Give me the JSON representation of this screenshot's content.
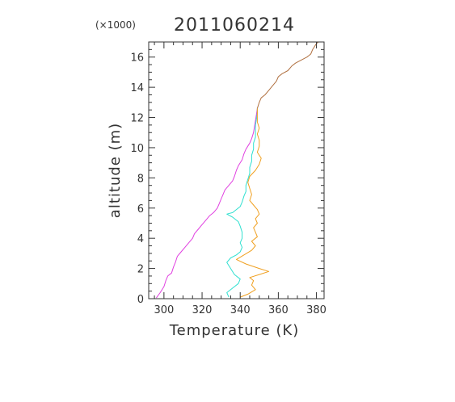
{
  "chart_data": {
    "type": "line",
    "title": "2011060214",
    "y_multiplier_label": "(×1000)",
    "xlabel": "Temperature (K)",
    "ylabel": "altitude (m)",
    "xlim": [
      292,
      384
    ],
    "ylim": [
      0,
      17
    ],
    "xticks": [
      300,
      320,
      340,
      360,
      380
    ],
    "yticks": [
      0,
      2,
      4,
      6,
      8,
      10,
      12,
      14,
      16
    ],
    "grid": false,
    "colors": {
      "magenta": "#e040e0",
      "cyan": "#30e0d0",
      "orange": "#f0a020",
      "brown": "#b07040",
      "axis": "#333333"
    },
    "series": [
      {
        "color": "#e040e0",
        "points": [
          [
            296,
            0.05
          ],
          [
            298,
            0.4
          ],
          [
            300,
            0.8
          ],
          [
            301,
            1.2
          ],
          [
            302,
            1.5
          ],
          [
            304,
            1.7
          ],
          [
            305,
            2.1
          ],
          [
            306,
            2.4
          ],
          [
            307,
            2.8
          ],
          [
            309,
            3.1
          ],
          [
            311,
            3.4
          ],
          [
            313,
            3.7
          ],
          [
            315,
            4.0
          ],
          [
            316,
            4.3
          ],
          [
            318,
            4.6
          ],
          [
            320,
            4.9
          ],
          [
            322,
            5.2
          ],
          [
            324,
            5.5
          ],
          [
            326,
            5.7
          ],
          [
            328,
            6.0
          ],
          [
            329,
            6.3
          ],
          [
            330,
            6.6
          ],
          [
            331,
            6.9
          ],
          [
            332,
            7.2
          ],
          [
            334,
            7.5
          ],
          [
            336,
            7.8
          ],
          [
            337,
            8.1
          ],
          [
            338,
            8.5
          ],
          [
            339,
            8.8
          ],
          [
            341,
            9.2
          ],
          [
            342,
            9.6
          ],
          [
            343,
            9.9
          ],
          [
            345,
            10.3
          ],
          [
            346,
            10.6
          ],
          [
            347,
            11.0
          ],
          [
            347.5,
            11.4
          ],
          [
            348,
            11.8
          ],
          [
            348.5,
            12.2
          ],
          [
            349,
            12.6
          ]
        ]
      },
      {
        "color": "#30e0d0",
        "points": [
          [
            334,
            0.1
          ],
          [
            333,
            0.4
          ],
          [
            336,
            0.7
          ],
          [
            339,
            1.0
          ],
          [
            340,
            1.3
          ],
          [
            337,
            1.6
          ],
          [
            335,
            2.0
          ],
          [
            333,
            2.4
          ],
          [
            335,
            2.7
          ],
          [
            338,
            2.9
          ],
          [
            340,
            3.1
          ],
          [
            341,
            3.4
          ],
          [
            340,
            3.7
          ],
          [
            341,
            4.0
          ],
          [
            341,
            4.4
          ],
          [
            340,
            4.8
          ],
          [
            339,
            5.1
          ],
          [
            336,
            5.4
          ],
          [
            333,
            5.6
          ],
          [
            336,
            5.7
          ],
          [
            338,
            5.9
          ],
          [
            340,
            6.1
          ],
          [
            341,
            6.4
          ],
          [
            342,
            6.8
          ],
          [
            343,
            7.1
          ],
          [
            343,
            7.5
          ],
          [
            344,
            7.9
          ],
          [
            345,
            8.3
          ],
          [
            345,
            8.7
          ],
          [
            346,
            9.1
          ],
          [
            346,
            9.5
          ],
          [
            347,
            9.9
          ],
          [
            347,
            10.3
          ],
          [
            348,
            10.7
          ],
          [
            348,
            11.1
          ],
          [
            348,
            11.5
          ],
          [
            348.5,
            11.9
          ],
          [
            349,
            12.3
          ],
          [
            349,
            12.6
          ]
        ]
      },
      {
        "color": "#f0a020",
        "points": [
          [
            340,
            0.1
          ],
          [
            344,
            0.3
          ],
          [
            348,
            0.6
          ],
          [
            346,
            0.9
          ],
          [
            347,
            1.2
          ],
          [
            345,
            1.4
          ],
          [
            350,
            1.6
          ],
          [
            355,
            1.8
          ],
          [
            350,
            2.0
          ],
          [
            343,
            2.3
          ],
          [
            338,
            2.6
          ],
          [
            342,
            2.9
          ],
          [
            346,
            3.2
          ],
          [
            348,
            3.5
          ],
          [
            346,
            3.8
          ],
          [
            349,
            4.1
          ],
          [
            348,
            4.4
          ],
          [
            347,
            4.7
          ],
          [
            349,
            5.0
          ],
          [
            348,
            5.3
          ],
          [
            350,
            5.6
          ],
          [
            349,
            5.9
          ],
          [
            347,
            6.2
          ],
          [
            345,
            6.5
          ],
          [
            346,
            6.9
          ],
          [
            345,
            7.3
          ],
          [
            344,
            7.7
          ],
          [
            345,
            8.1
          ],
          [
            348,
            8.5
          ],
          [
            350,
            8.9
          ],
          [
            351,
            9.3
          ],
          [
            349,
            9.7
          ],
          [
            350,
            10.1
          ],
          [
            350,
            10.5
          ],
          [
            349,
            10.9
          ],
          [
            350,
            11.3
          ],
          [
            349,
            11.7
          ],
          [
            349,
            12.1
          ],
          [
            349,
            12.6
          ]
        ]
      },
      {
        "color": "#b07040",
        "points": [
          [
            349,
            12.6
          ],
          [
            350,
            13.0
          ],
          [
            351,
            13.3
          ],
          [
            353,
            13.5
          ],
          [
            355,
            13.8
          ],
          [
            357,
            14.1
          ],
          [
            359,
            14.4
          ],
          [
            360,
            14.7
          ],
          [
            362,
            14.9
          ],
          [
            365,
            15.1
          ],
          [
            367,
            15.4
          ],
          [
            369,
            15.6
          ],
          [
            372,
            15.8
          ],
          [
            375,
            16.0
          ],
          [
            377,
            16.2
          ],
          [
            378,
            16.5
          ],
          [
            379,
            16.7
          ],
          [
            380,
            16.9
          ],
          [
            381,
            17.0
          ]
        ]
      }
    ]
  }
}
